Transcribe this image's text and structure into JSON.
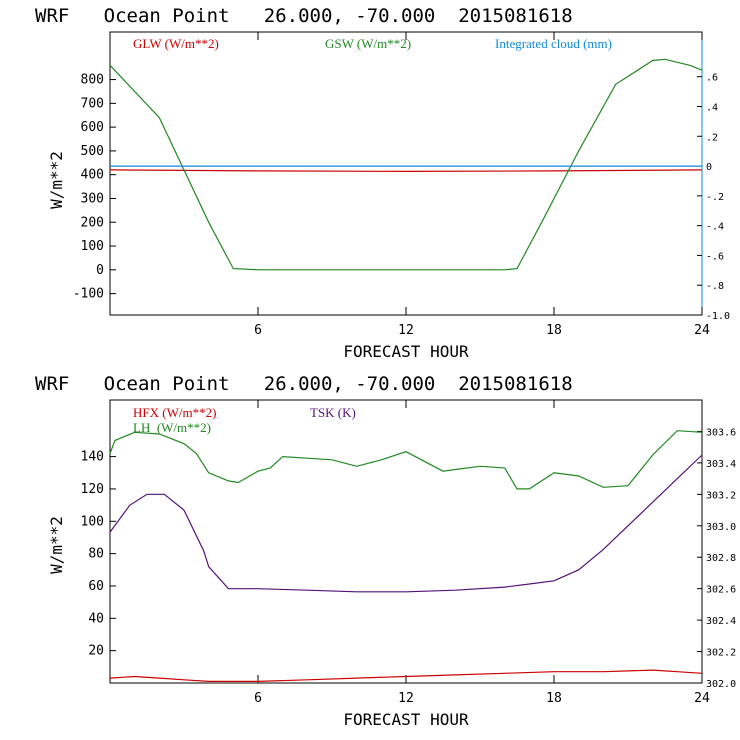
{
  "chart_data": [
    {
      "type": "line",
      "title": "WRF   Ocean Point   26.000, -70.000  2015081618",
      "xlabel": "FORECAST HOUR",
      "ylabel": "W/m**2",
      "xlim": [
        0,
        24
      ],
      "ylim": [
        -190,
        1000
      ],
      "x_ticks": [
        6,
        12,
        18,
        24
      ],
      "y_ticks": [
        -100,
        0,
        100,
        200,
        300,
        400,
        500,
        600,
        700,
        800
      ],
      "y2lim": [
        -1.0,
        0.9
      ],
      "y2_ticks": [
        -1.0,
        -0.8,
        -0.6,
        -0.4,
        -0.2,
        0,
        0.2,
        0.4,
        0.6
      ],
      "y2_tick_labels": [
        "-1.0",
        "-.8",
        "-.6",
        "-.4",
        "-.2",
        "0",
        ".2",
        ".4",
        ".6"
      ],
      "series": [
        {
          "name": "GLW (W/m**2)",
          "color": "#cc0000",
          "axis": "left",
          "x": [
            0,
            6,
            12,
            18,
            24
          ],
          "values": [
            420,
            416,
            414,
            416,
            420
          ]
        },
        {
          "name": "GSW (W/m**2)",
          "color": "#228822",
          "axis": "left",
          "x": [
            0,
            2,
            4,
            5,
            6,
            8,
            10,
            12,
            14,
            16,
            16.5,
            17.5,
            19,
            20.5,
            22,
            22.5,
            23.5,
            24
          ],
          "values": [
            860,
            640,
            200,
            5,
            0,
            0,
            0,
            0,
            0,
            0,
            5,
            200,
            500,
            780,
            880,
            885,
            860,
            840
          ]
        },
        {
          "name": "Integrated cloud (mm)",
          "color": "#1188dd",
          "axis": "right",
          "x": [
            0,
            24
          ],
          "values": [
            0,
            0
          ]
        }
      ]
    },
    {
      "type": "line",
      "title": "WRF   Ocean Point   26.000, -70.000  2015081618",
      "xlabel": "FORECAST HOUR",
      "ylabel": "W/m**2",
      "xlim": [
        0,
        24
      ],
      "ylim": [
        0,
        175
      ],
      "x_ticks": [
        6,
        12,
        18,
        24
      ],
      "y_ticks": [
        20,
        40,
        60,
        80,
        100,
        120,
        140
      ],
      "y2lim": [
        302.0,
        303.8
      ],
      "y2_ticks": [
        302.0,
        302.2,
        302.4,
        302.6,
        302.8,
        303.0,
        303.2,
        303.4,
        303.6
      ],
      "y2_tick_labels": [
        "302.0",
        "302.2",
        "302.4",
        "302.6",
        "302.8",
        "303.0",
        "303.2",
        "303.4",
        "303.6"
      ],
      "series": [
        {
          "name": "HFX (W/m**2)",
          "color": "#cc0000",
          "axis": "left",
          "x": [
            0,
            1,
            2,
            3,
            4,
            5,
            6,
            8,
            10,
            12,
            14,
            16,
            18,
            20,
            22,
            23,
            24
          ],
          "values": [
            3,
            4,
            3,
            2,
            1,
            1,
            1,
            2,
            3,
            4,
            5,
            6,
            7,
            7,
            8,
            7,
            6
          ]
        },
        {
          "name": "LH  (W/m**2)",
          "color": "#228822",
          "axis": "left",
          "x": [
            0,
            0.2,
            1,
            2,
            3,
            3.5,
            4,
            4.8,
            5.2,
            6,
            6.5,
            7,
            8,
            9,
            10,
            11,
            12,
            13,
            13.5,
            14,
            15,
            16,
            16.5,
            17,
            18,
            19,
            20,
            21,
            22,
            23,
            24
          ],
          "values": [
            142,
            150,
            155,
            154,
            148,
            142,
            130,
            125,
            124,
            131,
            133,
            140,
            139,
            138,
            134,
            138,
            143,
            135,
            131,
            132,
            134,
            133,
            120,
            120,
            130,
            128,
            121,
            122,
            141,
            156,
            155
          ]
        },
        {
          "name": "TSK (K)",
          "color": "#551177",
          "axis": "right",
          "x": [
            0,
            0.8,
            1.5,
            2.2,
            3,
            3.8,
            4,
            4.8,
            6,
            8,
            10,
            12,
            14,
            16,
            17,
            18,
            19,
            20,
            21,
            22,
            23,
            24
          ],
          "values": [
            302.96,
            303.13,
            303.2,
            303.2,
            303.1,
            302.84,
            302.74,
            302.6,
            302.6,
            302.59,
            302.58,
            302.58,
            302.59,
            302.61,
            302.63,
            302.65,
            302.72,
            302.85,
            303.0,
            303.15,
            303.3,
            303.45
          ]
        }
      ]
    }
  ]
}
